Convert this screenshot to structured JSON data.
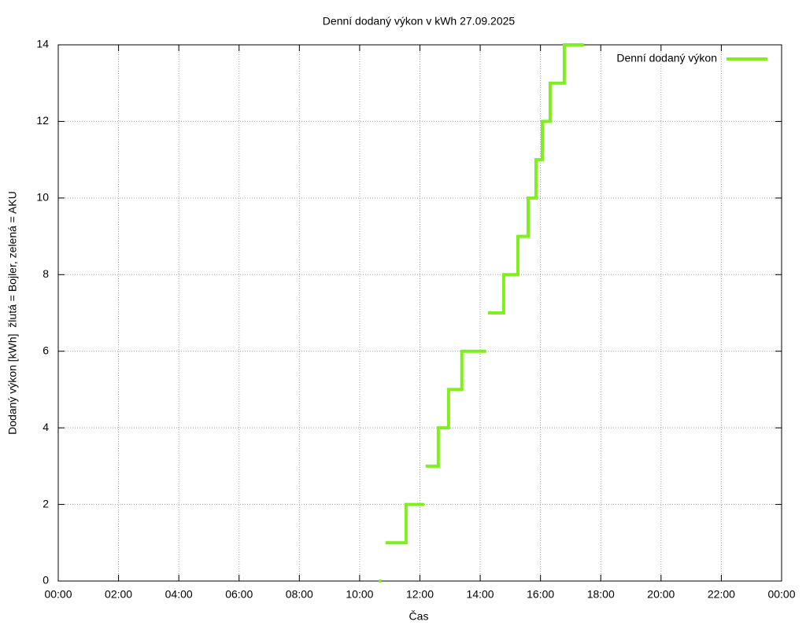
{
  "chart_data": {
    "type": "line",
    "title": "Denní dodaný výkon v kWh 27.09.2025",
    "xlabel": "Čas",
    "ylabel": "Dodaný výkon [kWh]  žlutá = Bojler, zelená = AKU",
    "x": [
      10.63,
      10.72,
      null,
      10.86,
      11.54,
      11.54,
      12.14,
      null,
      12.19,
      12.61,
      12.61,
      12.95,
      12.95,
      13.39,
      13.39,
      14.2,
      null,
      14.26,
      14.78,
      14.78,
      15.25,
      15.25,
      15.59,
      15.59,
      15.85,
      15.85,
      16.06,
      16.06,
      16.32,
      16.32,
      16.79,
      16.79,
      17.44
    ],
    "series": [
      {
        "name": "Denní dodaný výkon",
        "color": "#7ff01e",
        "values": [
          0,
          0,
          null,
          1,
          1,
          2,
          2,
          null,
          3,
          3,
          4,
          4,
          5,
          5,
          6,
          6,
          null,
          7,
          7,
          8,
          8,
          9,
          9,
          10,
          10,
          11,
          11,
          12,
          12,
          13,
          13,
          14,
          14
        ]
      }
    ],
    "xlim": [
      0,
      24
    ],
    "xticks": [
      {
        "value": 0,
        "label": "00:00"
      },
      {
        "value": 2,
        "label": "02:00"
      },
      {
        "value": 4,
        "label": "04:00"
      },
      {
        "value": 6,
        "label": "06:00"
      },
      {
        "value": 8,
        "label": "08:00"
      },
      {
        "value": 10,
        "label": "10:00"
      },
      {
        "value": 12,
        "label": "12:00"
      },
      {
        "value": 14,
        "label": "14:00"
      },
      {
        "value": 16,
        "label": "16:00"
      },
      {
        "value": 18,
        "label": "18:00"
      },
      {
        "value": 20,
        "label": "20:00"
      },
      {
        "value": 22,
        "label": "22:00"
      },
      {
        "value": 24,
        "label": "00:00"
      }
    ],
    "ylim": [
      0,
      14
    ],
    "yticks": [
      0,
      2,
      4,
      6,
      8,
      10,
      12,
      14
    ],
    "grid": true,
    "legend": "top-right"
  }
}
